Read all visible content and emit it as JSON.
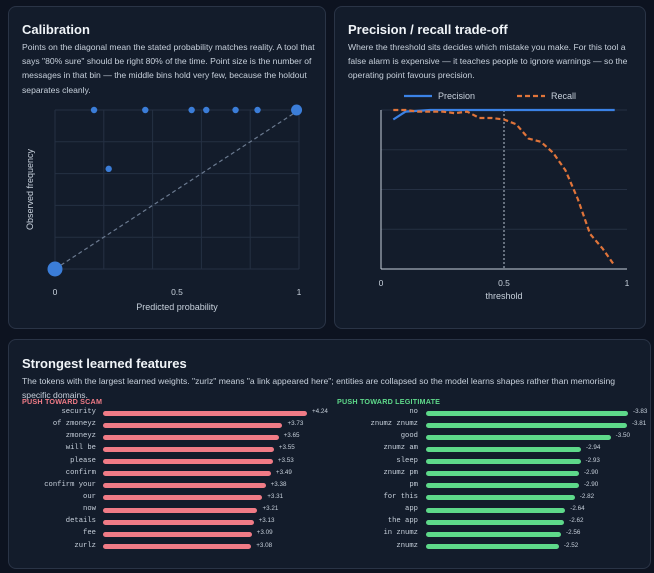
{
  "calibration": {
    "title": "Calibration",
    "description": "Points on the diagonal mean the stated probability matches reality. A tool that says \"80% sure\" should be right 80% of the time. Point size is the number of messages in that bin — the middle bins hold very few, because the holdout separates cleanly."
  },
  "precision_recall": {
    "title": "Precision / recall trade-off",
    "description": "Where the threshold sits decides which mistake you make. For this tool a false alarm is expensive — it teaches people to ignore warnings — so the operating point favours precision."
  },
  "features": {
    "title": "Strongest learned features",
    "description": "The tokens with the largest learned weights. \"zurlz\" means \"a link appeared here\"; entities are collapsed so the model learns shapes rather than memorising specific domains.",
    "scam_heading": "PUSH TOWARD SCAM",
    "legit_heading": "PUSH TOWARD LEGITIMATE",
    "scam_color": "#f07b86",
    "legit_color": "#5ed98a",
    "scam": [
      {
        "token": "security",
        "weight": 4.24,
        "label": "+4.24"
      },
      {
        "token": "of zmoneyz",
        "weight": 3.73,
        "label": "+3.73"
      },
      {
        "token": "zmoneyz",
        "weight": 3.65,
        "label": "+3.65"
      },
      {
        "token": "will be",
        "weight": 3.55,
        "label": "+3.55"
      },
      {
        "token": "please",
        "weight": 3.53,
        "label": "+3.53"
      },
      {
        "token": "confirm",
        "weight": 3.49,
        "label": "+3.49"
      },
      {
        "token": "confirm your",
        "weight": 3.38,
        "label": "+3.38"
      },
      {
        "token": "our",
        "weight": 3.31,
        "label": "+3.31"
      },
      {
        "token": "now",
        "weight": 3.21,
        "label": "+3.21"
      },
      {
        "token": "details",
        "weight": 3.13,
        "label": "+3.13"
      },
      {
        "token": "fee",
        "weight": 3.09,
        "label": "+3.09"
      },
      {
        "token": "zurlz",
        "weight": 3.08,
        "label": "+3.08"
      }
    ],
    "legit": [
      {
        "token": "no",
        "weight": -3.83,
        "label": "-3.83"
      },
      {
        "token": "znumz znumz",
        "weight": -3.81,
        "label": "-3.81"
      },
      {
        "token": "good",
        "weight": -3.5,
        "label": "-3.50"
      },
      {
        "token": "znumz am",
        "weight": -2.94,
        "label": "-2.94"
      },
      {
        "token": "sleep",
        "weight": -2.93,
        "label": "-2.93"
      },
      {
        "token": "znumz pm",
        "weight": -2.9,
        "label": "-2.90"
      },
      {
        "token": "pm",
        "weight": -2.9,
        "label": "-2.90"
      },
      {
        "token": "for this",
        "weight": -2.82,
        "label": "-2.82"
      },
      {
        "token": "app",
        "weight": -2.64,
        "label": "-2.64"
      },
      {
        "token": "the app",
        "weight": -2.62,
        "label": "-2.62"
      },
      {
        "token": "in znumz",
        "weight": -2.56,
        "label": "-2.56"
      },
      {
        "token": "znumz",
        "weight": -2.52,
        "label": "-2.52"
      }
    ]
  },
  "chart_data": [
    {
      "type": "scatter",
      "title": "Calibration",
      "xlabel": "Predicted probability",
      "ylabel": "Observed frequency",
      "xlim": [
        0,
        1
      ],
      "ylim": [
        0,
        1
      ],
      "x_ticks": [
        {
          "v": 0,
          "label": "0"
        },
        {
          "v": 0.5,
          "label": "0.5"
        },
        {
          "v": 1,
          "label": "1"
        }
      ],
      "grid": true,
      "reference_line": {
        "from": [
          0,
          0
        ],
        "to": [
          1,
          1
        ],
        "style": "dashed"
      },
      "point_color": "#3b7dd8",
      "points": [
        {
          "x": 0.0,
          "y": 0.0,
          "size": "large"
        },
        {
          "x": 0.16,
          "y": 1.0,
          "size": "small"
        },
        {
          "x": 0.22,
          "y": 0.63,
          "size": "small"
        },
        {
          "x": 0.37,
          "y": 1.0,
          "size": "small"
        },
        {
          "x": 0.56,
          "y": 1.0,
          "size": "small"
        },
        {
          "x": 0.62,
          "y": 1.0,
          "size": "small"
        },
        {
          "x": 0.74,
          "y": 1.0,
          "size": "small"
        },
        {
          "x": 0.83,
          "y": 1.0,
          "size": "small"
        },
        {
          "x": 0.99,
          "y": 1.0,
          "size": "medium"
        }
      ]
    },
    {
      "type": "line",
      "title": "Precision / recall trade-off",
      "xlabel": "threshold",
      "ylabel": "",
      "xlim": [
        0,
        1
      ],
      "ylim": [
        0,
        1
      ],
      "x_ticks": [
        {
          "v": 0,
          "label": "0"
        },
        {
          "v": 0.5,
          "label": "0.5"
        },
        {
          "v": 1,
          "label": "1"
        }
      ],
      "grid": true,
      "legend": "top",
      "operating_point": 0.5,
      "series": [
        {
          "name": "Precision",
          "color": "#3b82e6",
          "style": "solid",
          "x": [
            0.05,
            0.1,
            0.2,
            0.3,
            0.4,
            0.5,
            0.6,
            0.7,
            0.8,
            0.9,
            0.95
          ],
          "y": [
            0.94,
            0.99,
            1.0,
            1.0,
            1.0,
            1.0,
            1.0,
            1.0,
            1.0,
            1.0,
            1.0
          ]
        },
        {
          "name": "Recall",
          "color": "#e0743a",
          "style": "dashed",
          "x": [
            0.05,
            0.1,
            0.15,
            0.2,
            0.25,
            0.3,
            0.35,
            0.4,
            0.45,
            0.5,
            0.55,
            0.6,
            0.65,
            0.7,
            0.75,
            0.8,
            0.85,
            0.9,
            0.95
          ],
          "y": [
            1.0,
            1.0,
            0.99,
            0.99,
            0.99,
            0.98,
            0.99,
            0.95,
            0.95,
            0.94,
            0.91,
            0.82,
            0.8,
            0.73,
            0.62,
            0.44,
            0.22,
            0.13,
            0.02
          ]
        }
      ]
    }
  ]
}
